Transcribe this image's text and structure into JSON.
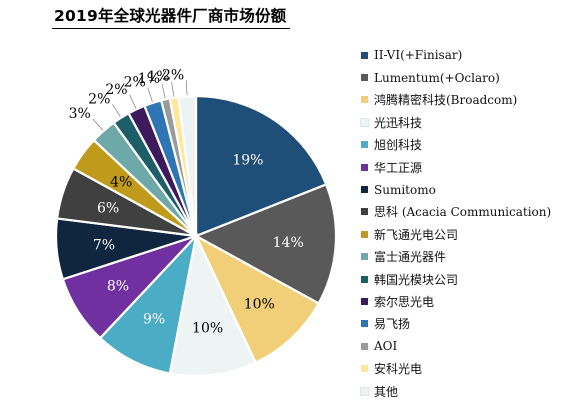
{
  "chart_data": {
    "type": "pie",
    "title": "2019年全球光器件厂商市场份额",
    "slices": [
      {
        "label": "II-VI(+Finisar)",
        "value": 19,
        "display": "19%",
        "color": "#1F4E79"
      },
      {
        "label": "Lumentum(+Oclaro)",
        "value": 14,
        "display": "14%",
        "color": "#595959"
      },
      {
        "label": "鸿腾精密科技(Broadcom)",
        "value": 10,
        "display": "10%",
        "color": "#F0CF78"
      },
      {
        "label": "光迅科技",
        "value": 10,
        "display": "10%",
        "color": "#EEF4F4"
      },
      {
        "label": "旭创科技",
        "value": 9,
        "display": "9%",
        "color": "#4BACC6"
      },
      {
        "label": "华工正源",
        "value": 8,
        "display": "8%",
        "color": "#7030A0"
      },
      {
        "label": "Sumitomo",
        "value": 7,
        "display": "7%",
        "color": "#10253F"
      },
      {
        "label": "思科 (Acacia Communication)",
        "value": 6,
        "display": "6%",
        "color": "#404040"
      },
      {
        "label": "新飞通光电公司",
        "value": 4,
        "display": "4%",
        "color": "#C09A1B"
      },
      {
        "label": "富士通光器件",
        "value": 3,
        "display": "3%",
        "color": "#6EA8A8"
      },
      {
        "label": "韩国光模块公司",
        "value": 2,
        "display": "2%",
        "color": "#1D5E69"
      },
      {
        "label": "索尔思光电",
        "value": 2,
        "display": "2%",
        "color": "#3D1A5C"
      },
      {
        "label": "易飞扬",
        "value": 2,
        "display": "2%",
        "color": "#2E75B6"
      },
      {
        "label": "AOI",
        "value": 1,
        "display": "1%",
        "color": "#9A9A9A"
      },
      {
        "label": "安科光电",
        "value": 1,
        "display": "1%",
        "color": "#FFE699"
      },
      {
        "label": "其他",
        "value": 2,
        "display": "2%",
        "color": "#EDF3F3"
      }
    ],
    "legend_position": "right"
  }
}
